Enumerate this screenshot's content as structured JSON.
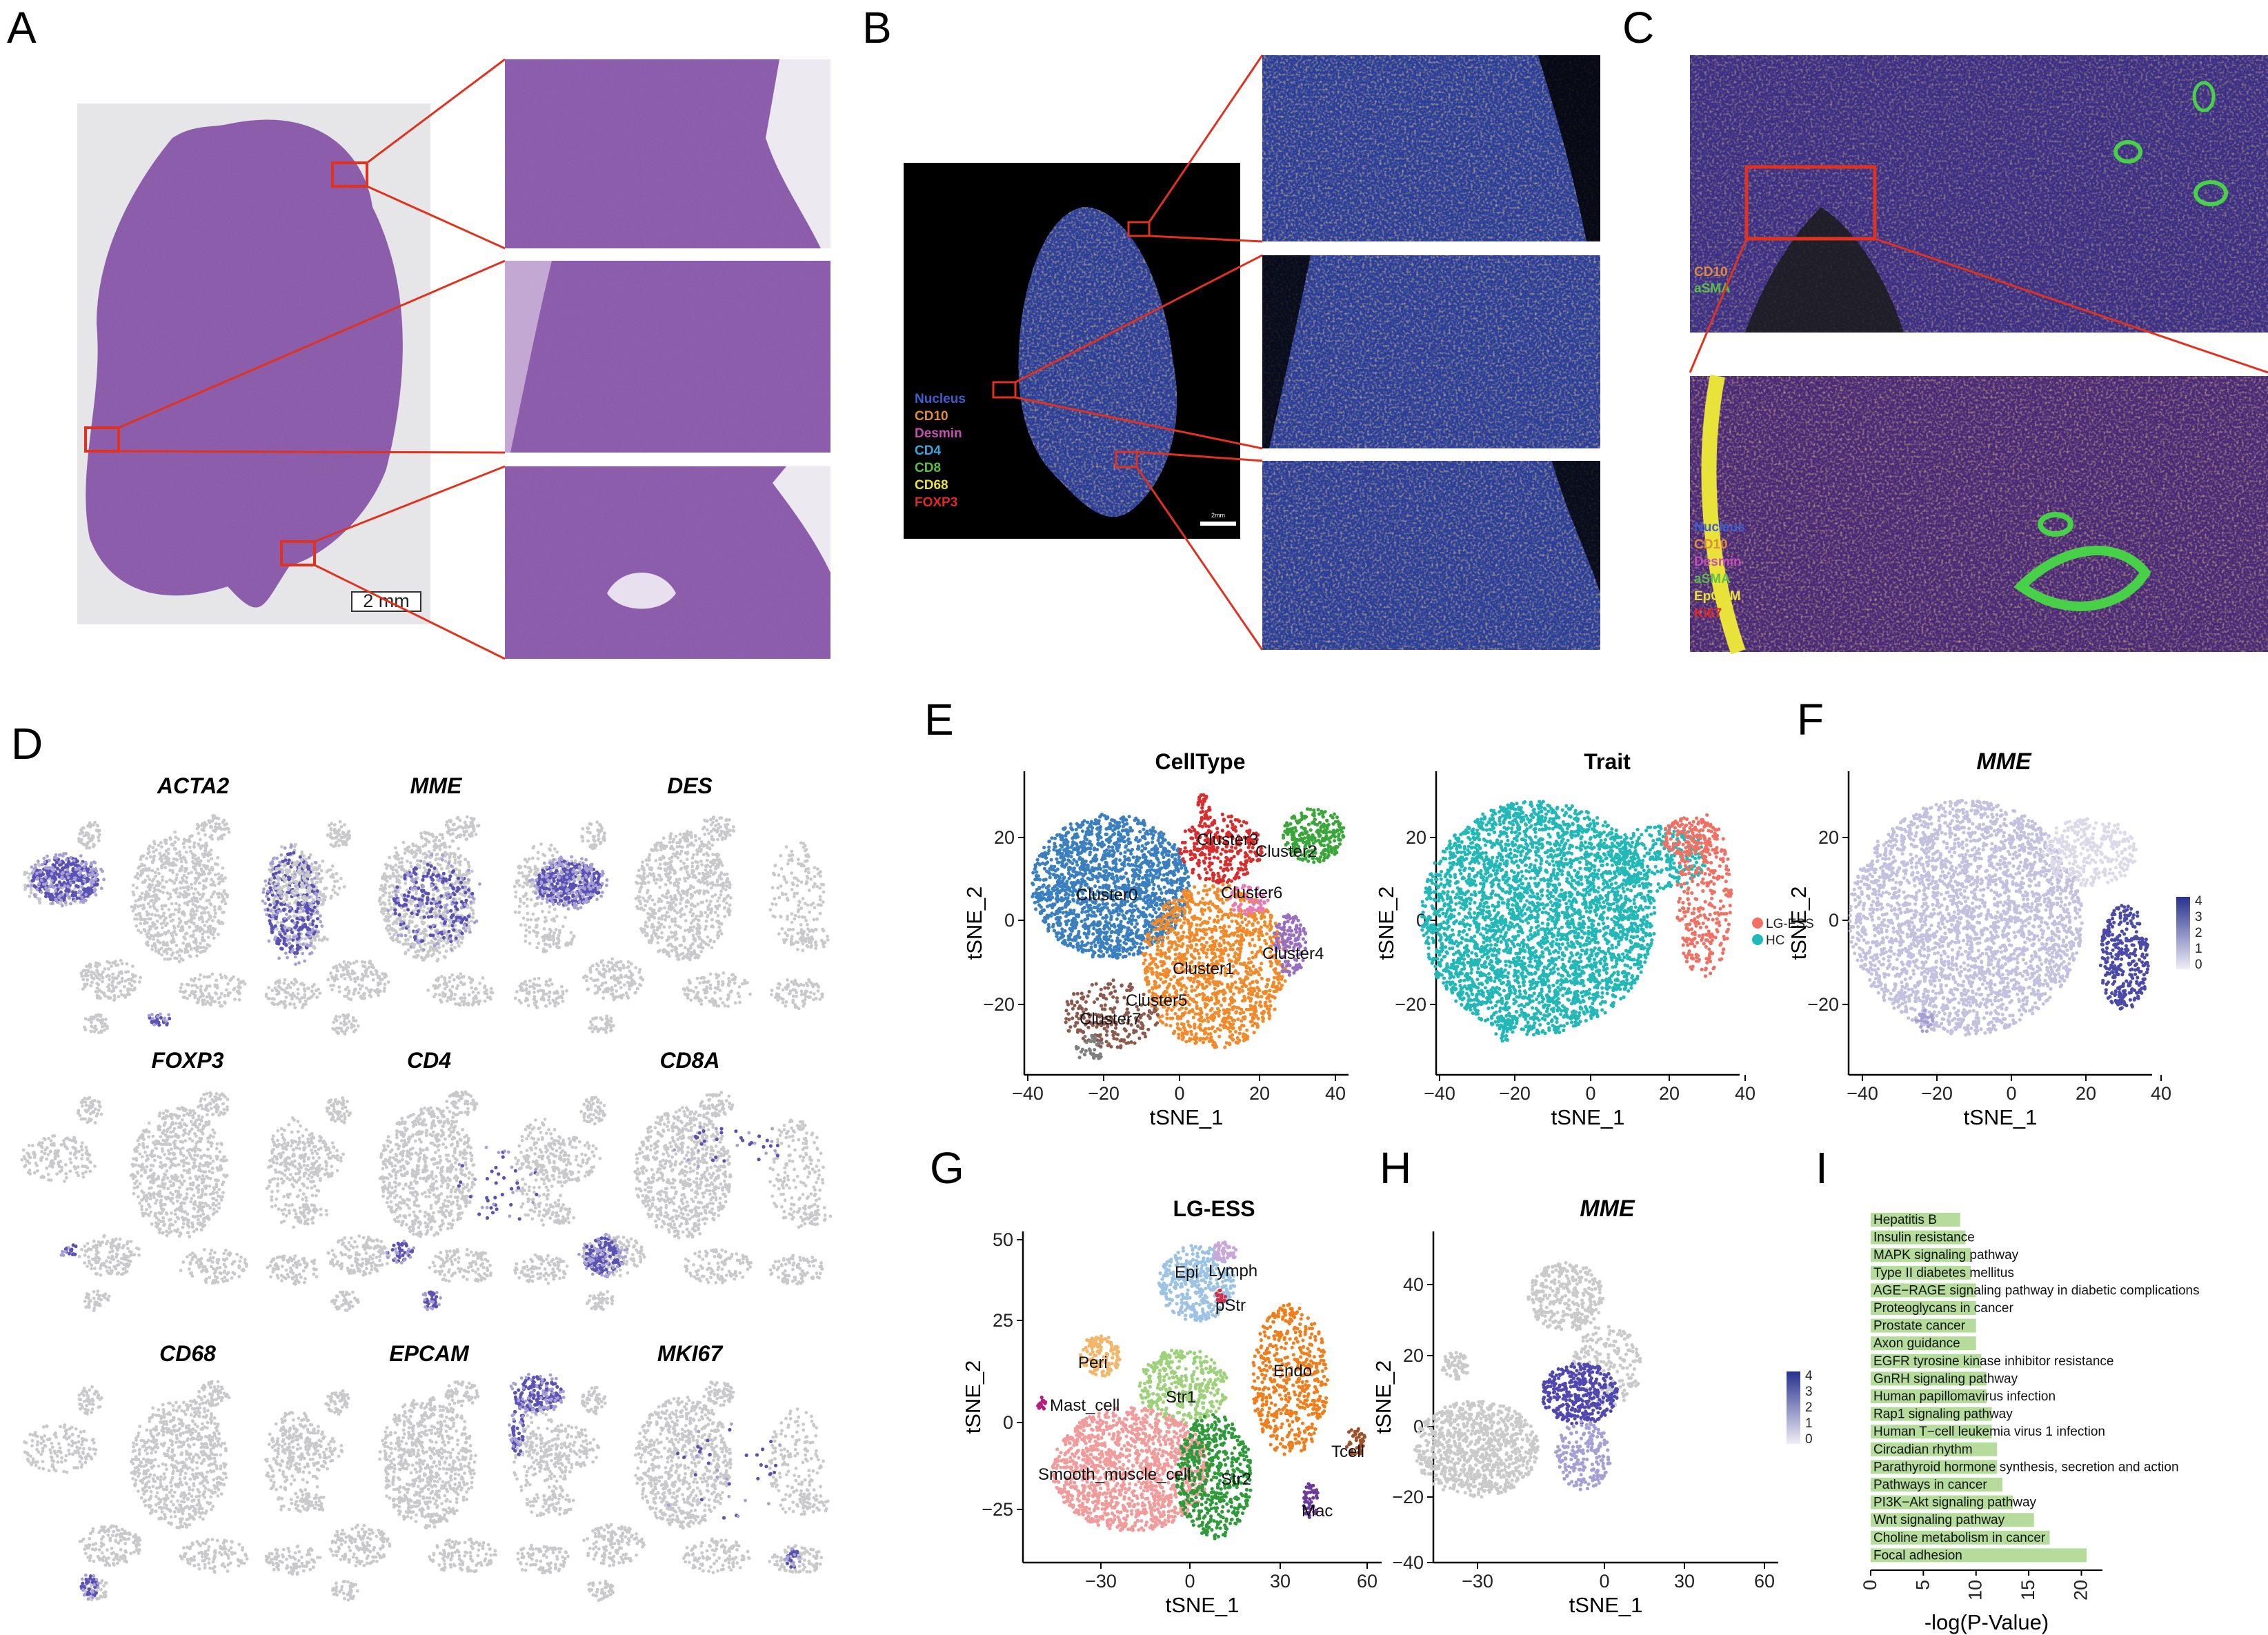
{
  "panels": [
    "A",
    "B",
    "C",
    "D",
    "E",
    "F",
    "G",
    "H",
    "I"
  ],
  "panel_a": {
    "scale_label": "2 mm"
  },
  "panel_b": {
    "legend": [
      {
        "label": "Nucleus",
        "color": "#3a5fd0"
      },
      {
        "label": "CD10",
        "color": "#e08a3c"
      },
      {
        "label": "Desmin",
        "color": "#c64fb4"
      },
      {
        "label": "CD4",
        "color": "#39a8e0"
      },
      {
        "label": "CD8",
        "color": "#5cbf48"
      },
      {
        "label": "CD68",
        "color": "#e8e23a"
      },
      {
        "label": "FOXP3",
        "color": "#e02a2a"
      }
    ],
    "scale_label": "2mm"
  },
  "panel_c": {
    "legend_top": [
      {
        "label": "CD10",
        "color": "#e08a3c"
      },
      {
        "label": "aSMA",
        "color": "#5cbf48"
      }
    ],
    "legend_bottom": [
      {
        "label": "Nucleus",
        "color": "#3a5fd0"
      },
      {
        "label": "CD10",
        "color": "#e08a3c"
      },
      {
        "label": "Desmin",
        "color": "#c64fb4"
      },
      {
        "label": "aSMA",
        "color": "#5cbf48"
      },
      {
        "label": "EpCAM",
        "color": "#e8e23a"
      },
      {
        "label": "Ki67",
        "color": "#e02a2a"
      }
    ]
  },
  "panel_d": {
    "genes": [
      "ACTA2",
      "MME",
      "DES",
      "FOXP3",
      "CD4",
      "CD8A",
      "CD68",
      "EPCAM",
      "MKI67"
    ]
  },
  "panel_e": {
    "celltype": {
      "title": "CellType",
      "clusters": [
        "Cluster0",
        "Cluster1",
        "Cluster2",
        "Cluster3",
        "Cluster4",
        "Cluster5",
        "Cluster6",
        "Cluster7"
      ],
      "colors": [
        "#3a7fc0",
        "#f28a2a",
        "#3aa63a",
        "#d92c2c",
        "#9a6fc0",
        "#8c5a4c",
        "#e57ab8",
        "#7f7f7f"
      ]
    },
    "trait": {
      "title": "Trait",
      "legend": [
        {
          "label": "LG-ESS",
          "color": "#f07064"
        },
        {
          "label": "HC",
          "color": "#22b8b8"
        }
      ]
    },
    "x_ticks": [
      "−40",
      "−20",
      "0",
      "20",
      "40"
    ],
    "y_ticks": [
      "20",
      "0",
      "−20"
    ],
    "xlabel": "tSNE_1",
    "ylabel": "tSNE_2"
  },
  "panel_f": {
    "title": "MME",
    "colorbar": [
      "4",
      "3",
      "2",
      "1",
      "0"
    ],
    "x_ticks": [
      "−40",
      "−20",
      "0",
      "20",
      "40"
    ],
    "y_ticks": [
      "20",
      "0",
      "−20"
    ],
    "xlabel": "tSNE_1",
    "ylabel": "tSNE_2"
  },
  "panel_g": {
    "title": "LG-ESS",
    "clusters": [
      "Epi",
      "Lymph",
      "pStr",
      "Peri",
      "Mast_cell",
      "Str1",
      "Endo",
      "Smooth_muscle_cell",
      "Str2",
      "Tcell",
      "Mac"
    ],
    "x_ticks": [
      "−30",
      "0",
      "30",
      "60"
    ],
    "y_ticks": [
      "50",
      "25",
      "0",
      "−25"
    ],
    "xlabel": "tSNE_1",
    "ylabel": "tSNE_2"
  },
  "panel_h": {
    "title": "MME",
    "colorbar": [
      "4",
      "3",
      "2",
      "1",
      "0"
    ],
    "x_ticks": [
      "−30",
      "0",
      "30",
      "60"
    ],
    "y_ticks": [
      "40",
      "20",
      "0",
      "−20",
      "−40"
    ],
    "xlabel": "tSNE_1",
    "ylabel": "tSNE_2"
  },
  "chart_data": {
    "type": "bar",
    "orientation": "horizontal",
    "xlabel": "-log(P-Value)",
    "x_ticks": [
      "0",
      "5",
      "10",
      "15",
      "20"
    ],
    "xlim": [
      0,
      23
    ],
    "categories": [
      "Hepatitis B",
      "Insulin resistance",
      "MAPK signaling pathway",
      "Type II diabetes mellitus",
      "AGE−RAGE signaling pathway in diabetic complications",
      "Proteoglycans in cancer",
      "Prostate cancer",
      "Axon guidance",
      "EGFR tyrosine kinase inhibitor resistance",
      "GnRH signaling pathway",
      "Human papillomavirus infection",
      "Rap1 signaling pathway",
      "Human T−cell leukemia virus 1 infection",
      "Circadian rhythm",
      "Parathyroid hormone synthesis, secretion and action",
      "Pathways in cancer",
      "PI3K−Akt signaling pathway",
      "Wnt signaling pathway",
      "Choline metabolism in cancer",
      "Focal adhesion"
    ],
    "values": [
      8.5,
      9.0,
      9.5,
      9.5,
      10.0,
      10.0,
      10.0,
      10.0,
      10.5,
      11.0,
      11.0,
      11.5,
      11.5,
      12.0,
      12.0,
      12.5,
      13.5,
      15.5,
      17.0,
      20.5
    ],
    "bar_color": "#b5dc9b"
  }
}
